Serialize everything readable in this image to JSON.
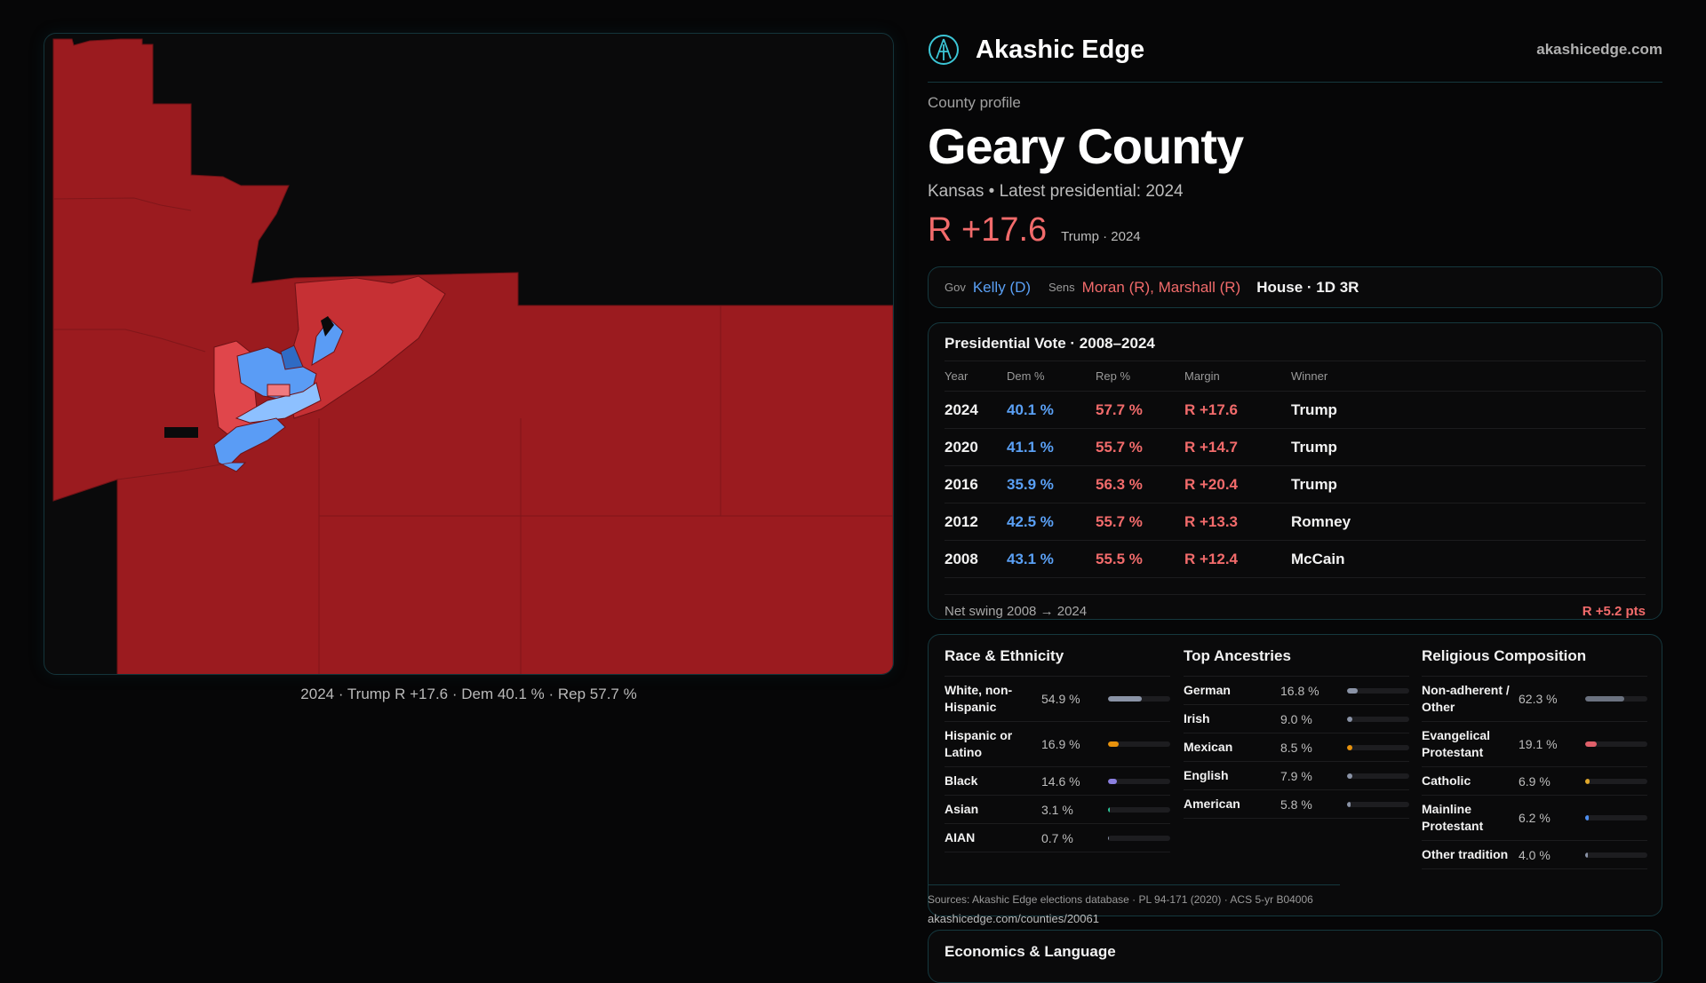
{
  "brand": {
    "name": "Akashic Edge",
    "site": "akashicedge.com",
    "logo_icon": "akashic-compass-logo"
  },
  "profile": {
    "eyebrow": "County profile",
    "title": "Geary County",
    "subtitle": "Kansas • Latest presidential: 2024",
    "margin": "R +17.6",
    "margin_note": "Trump · 2024"
  },
  "officials": {
    "gov_label": "Gov",
    "gov": "Kelly (D)",
    "sens_label": "Sens",
    "sens": "Moran (R), Marshall (R)",
    "house": "House · 1D 3R"
  },
  "map": {
    "caption": "2024 · Trump R +17.6 · Dem 40.1 % · Rep 57.7 %",
    "colors": {
      "safe_r": "#9b1b1f",
      "lean_r": "#c63034",
      "tilt_r": "#f07a7f",
      "lean_d": "#5a9cf5",
      "tilt_d": "#8dc0ff",
      "safe_d": "#2f6bc4",
      "no_data": "#0a0a0b"
    }
  },
  "presidential": {
    "title": "Presidential Vote · 2008–2024",
    "headers": [
      "Year",
      "Dem %",
      "Rep %",
      "Margin",
      "Winner"
    ],
    "rows": [
      {
        "year": "2024",
        "dem": "40.1 %",
        "rep": "57.7 %",
        "margin": "R +17.6",
        "winner": "Trump"
      },
      {
        "year": "2020",
        "dem": "41.1 %",
        "rep": "55.7 %",
        "margin": "R +14.7",
        "winner": "Trump"
      },
      {
        "year": "2016",
        "dem": "35.9 %",
        "rep": "56.3 %",
        "margin": "R +20.4",
        "winner": "Trump"
      },
      {
        "year": "2012",
        "dem": "42.5 %",
        "rep": "55.7 %",
        "margin": "R +13.3",
        "winner": "Romney"
      },
      {
        "year": "2008",
        "dem": "43.1 %",
        "rep": "55.5 %",
        "margin": "R +12.4",
        "winner": "McCain"
      }
    ],
    "swing_label": "Net swing 2008 → 2024",
    "swing_value": "R +5.2 pts"
  },
  "race": {
    "title": "Race & Ethnicity",
    "items": [
      {
        "label": "White, non-Hispanic",
        "value": "54.9 %",
        "pct": 54.9,
        "color": "#8a93a6"
      },
      {
        "label": "Hispanic or Latino",
        "value": "16.9 %",
        "pct": 16.9,
        "color": "#e8920c"
      },
      {
        "label": "Black",
        "value": "14.6 %",
        "pct": 14.6,
        "color": "#8b7fe0"
      },
      {
        "label": "Asian",
        "value": "3.1 %",
        "pct": 3.1,
        "color": "#2bc79a"
      },
      {
        "label": "AIAN",
        "value": "0.7 %",
        "pct": 0.7,
        "color": "#8a93a6"
      }
    ]
  },
  "ancestry": {
    "title": "Top Ancestries",
    "items": [
      {
        "label": "German",
        "value": "16.8 %",
        "pct": 16.8,
        "color": "#8a93a6"
      },
      {
        "label": "Irish",
        "value": "9.0 %",
        "pct": 9.0,
        "color": "#8a93a6"
      },
      {
        "label": "Mexican",
        "value": "8.5 %",
        "pct": 8.5,
        "color": "#e8920c"
      },
      {
        "label": "English",
        "value": "7.9 %",
        "pct": 7.9,
        "color": "#8a93a6"
      },
      {
        "label": "American",
        "value": "5.8 %",
        "pct": 5.8,
        "color": "#8a93a6"
      }
    ]
  },
  "religion": {
    "title": "Religious Composition",
    "items": [
      {
        "label": "Non-adherent / Other",
        "value": "62.3 %",
        "pct": 62.3,
        "color": "#6b7280"
      },
      {
        "label": "Evangelical Protestant",
        "value": "19.1 %",
        "pct": 19.1,
        "color": "#e0606a"
      },
      {
        "label": "Catholic",
        "value": "6.9 %",
        "pct": 6.9,
        "color": "#e0a82a"
      },
      {
        "label": "Mainline Protestant",
        "value": "6.2 %",
        "pct": 6.2,
        "color": "#4d8ef0"
      },
      {
        "label": "Other tradition",
        "value": "4.0 %",
        "pct": 4.0,
        "color": "#8a93a6"
      }
    ]
  },
  "sources": {
    "text": "Sources: Akashic Edge elections database · PL 94-171 (2020) · ACS 5-yr B04006",
    "url": "akashicedge.com/counties/20061"
  },
  "economics": {
    "title": "Economics & Language"
  }
}
